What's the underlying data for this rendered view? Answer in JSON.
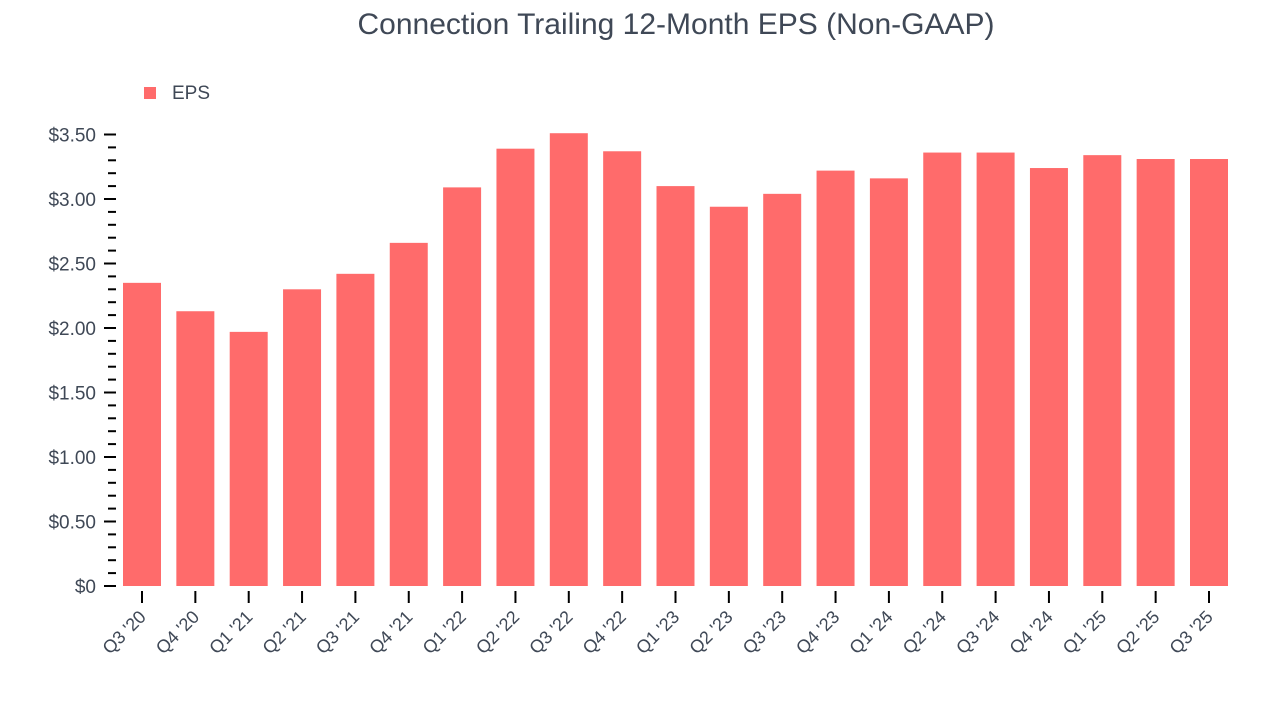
{
  "chart_data": {
    "type": "bar",
    "title": "Connection Trailing 12-Month EPS (Non-GAAP)",
    "xlabel": "",
    "ylabel": "",
    "legend": {
      "entries": [
        "EPS"
      ],
      "placement": "top-left"
    },
    "categories": [
      "Q3 '20",
      "Q4 '20",
      "Q1 '21",
      "Q2 '21",
      "Q3 '21",
      "Q4 '21",
      "Q1 '22",
      "Q2 '22",
      "Q3 '22",
      "Q4 '22",
      "Q1 '23",
      "Q2 '23",
      "Q3 '23",
      "Q4 '23",
      "Q1 '24",
      "Q2 '24",
      "Q3 '24",
      "Q4 '24",
      "Q1 '25",
      "Q2 '25",
      "Q3 '25"
    ],
    "series": [
      {
        "name": "EPS",
        "color": "#ff6b6b",
        "values": [
          2.35,
          2.13,
          1.97,
          2.3,
          2.42,
          2.66,
          3.09,
          3.39,
          3.51,
          3.37,
          3.1,
          2.94,
          3.04,
          3.22,
          3.16,
          3.36,
          3.36,
          3.24,
          3.34,
          3.31,
          3.31
        ]
      }
    ],
    "ylim": [
      0,
      3.5
    ],
    "yticks": [
      0,
      0.5,
      1,
      1.5,
      2,
      2.5,
      3,
      3.5
    ],
    "ytick_labels": [
      "$0",
      "$0.50",
      "$1.00",
      "$1.50",
      "$2.00",
      "$2.50",
      "$3.00",
      "$3.50"
    ],
    "grid": false
  }
}
